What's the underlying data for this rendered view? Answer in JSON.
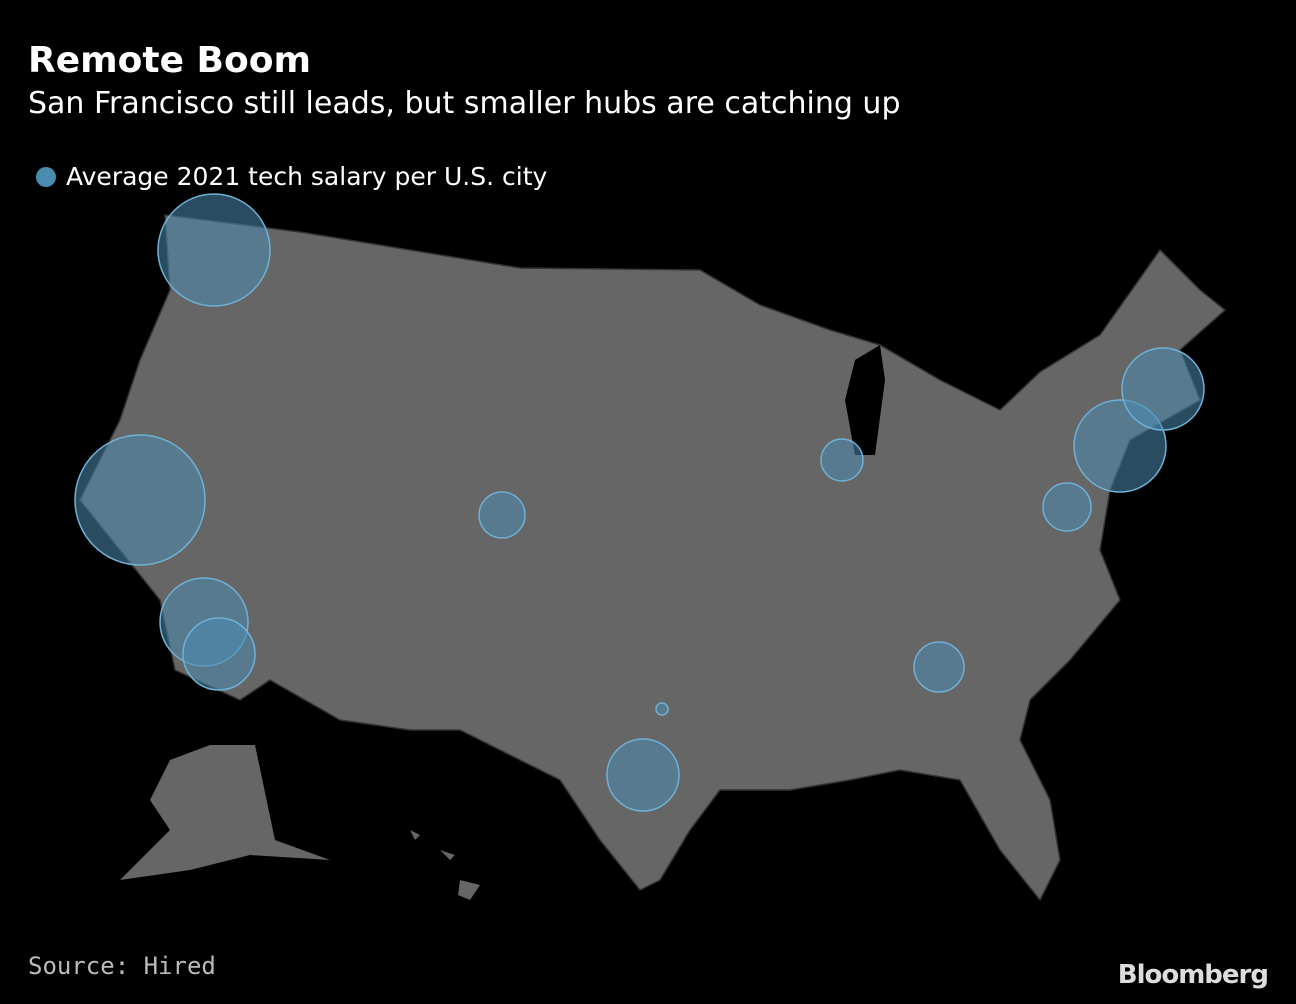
{
  "header": {
    "title": "Remote Boom",
    "subtitle": "San Francisco still leads, but smaller hubs are catching up"
  },
  "legend": {
    "label": "Average 2021 tech salary per U.S. city"
  },
  "footer": {
    "source": "Source: Hired",
    "brand": "Bloomberg"
  }
}
